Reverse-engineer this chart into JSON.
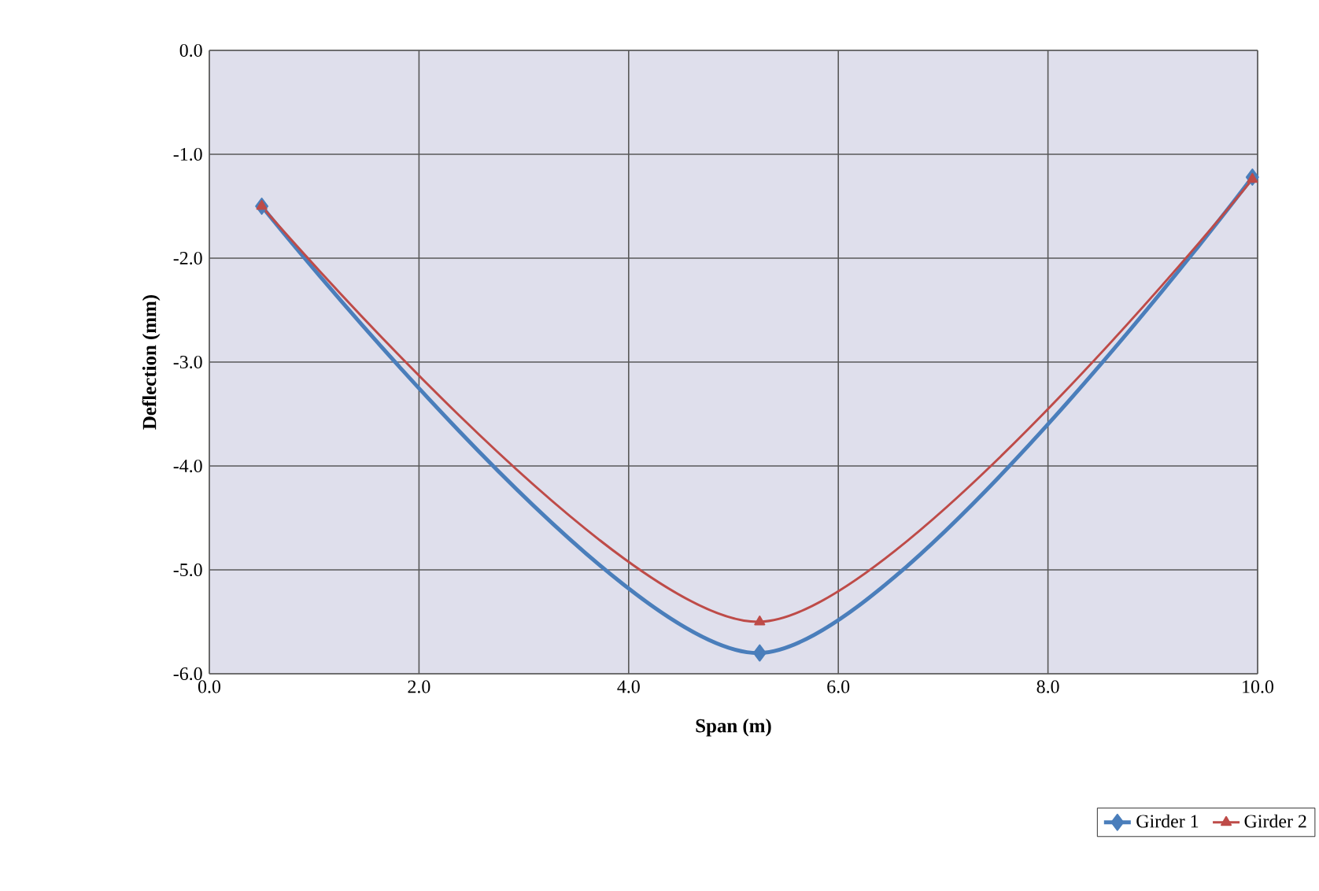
{
  "chart_data": {
    "type": "line",
    "xlabel": "Span (m)",
    "ylabel": "Deflection (mm)",
    "series": [
      {
        "name": "Girder 1",
        "color": "#4a7ebb",
        "marker": "diamond",
        "x": [
          0.5,
          5.25,
          9.95
        ],
        "values": [
          -1.5,
          -5.8,
          -1.22
        ]
      },
      {
        "name": "Girder 2",
        "color": "#be4b48",
        "marker": "triangle",
        "x": [
          0.5,
          5.25,
          9.95
        ],
        "values": [
          -1.5,
          -5.5,
          -1.24
        ]
      }
    ],
    "xlim": [
      0,
      10
    ],
    "ylim": [
      -6,
      0
    ],
    "xticks": [
      {
        "value": 0,
        "label": "0.0"
      },
      {
        "value": 2,
        "label": "2.0"
      },
      {
        "value": 4,
        "label": "4.0"
      },
      {
        "value": 6,
        "label": "6.0"
      },
      {
        "value": 8,
        "label": "8.0"
      },
      {
        "value": 10,
        "label": "10.0"
      }
    ],
    "yticks": [
      {
        "value": -6,
        "label": "-6.0"
      },
      {
        "value": -5,
        "label": "-5.0"
      },
      {
        "value": -4,
        "label": "-4.0"
      },
      {
        "value": -3,
        "label": "-3.0"
      },
      {
        "value": -2,
        "label": "-2.0"
      },
      {
        "value": -1,
        "label": "-1.0"
      },
      {
        "value": 0,
        "label": "0.0"
      }
    ],
    "grid": true,
    "legend": "bottom right",
    "line_style": "solid"
  }
}
